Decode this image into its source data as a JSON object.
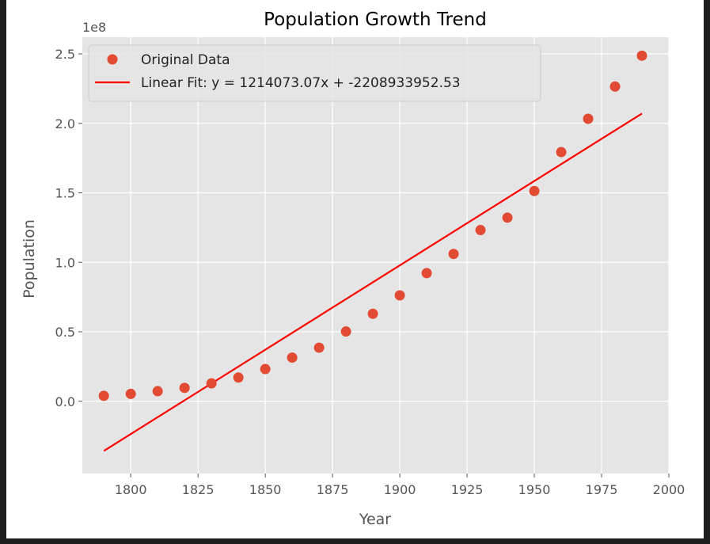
{
  "chart_data": {
    "type": "scatter",
    "title": "Population Growth Trend",
    "xlabel": "Year",
    "ylabel": "Population",
    "y_offset_label": "1e8",
    "xlim": [
      1782,
      2000
    ],
    "ylim": [
      -0.52,
      2.62
    ],
    "x_ticks": [
      1800,
      1825,
      1850,
      1875,
      1900,
      1925,
      1950,
      1975,
      2000
    ],
    "y_ticks": [
      0.0,
      0.5,
      1.0,
      1.5,
      2.0,
      2.5
    ],
    "grid": true,
    "legend_position": "upper-left",
    "series": [
      {
        "name": "Original Data",
        "kind": "scatter",
        "color": "#E24A33",
        "x": [
          1790,
          1800,
          1810,
          1820,
          1830,
          1840,
          1850,
          1860,
          1870,
          1880,
          1890,
          1900,
          1910,
          1920,
          1930,
          1940,
          1950,
          1960,
          1970,
          1980,
          1990
        ],
        "y": [
          3929214,
          5308483,
          7239881,
          9638453,
          12866020,
          17069453,
          23191876,
          31443321,
          38558371,
          50189209,
          62979766,
          76212168,
          92228496,
          106021537,
          123202624,
          132164569,
          151325798,
          179323175,
          203302031,
          226542199,
          248709873
        ]
      },
      {
        "name": "Linear Fit: y = 1214073.07x + -2208933952.53",
        "kind": "line",
        "color": "#FF0000",
        "slope": 1214073.07,
        "intercept": -2208933952.53,
        "x_range": [
          1790,
          1990
        ]
      }
    ]
  }
}
